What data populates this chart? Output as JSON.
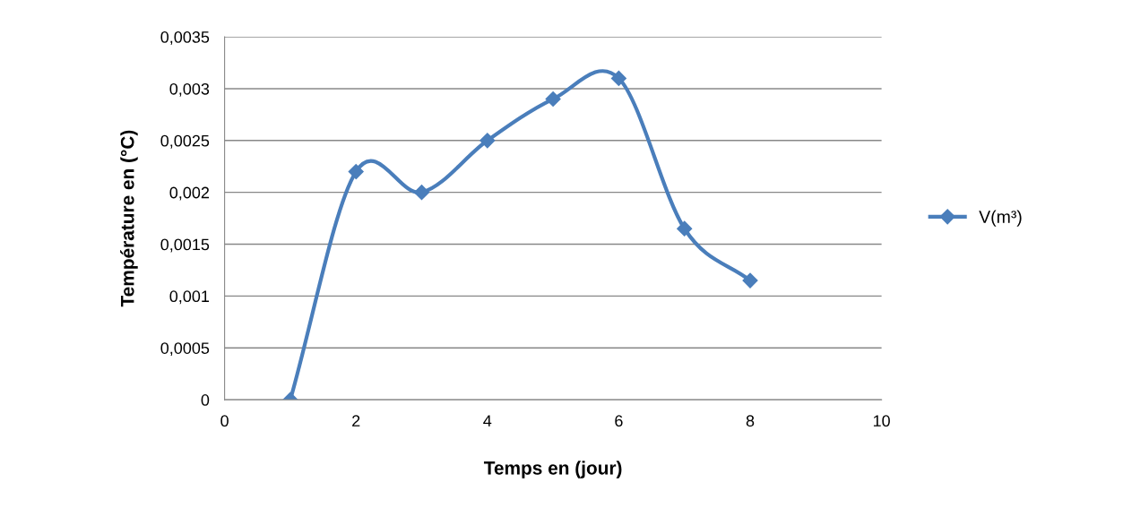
{
  "chart_data": {
    "type": "line",
    "xlabel": "Temps en (jour)",
    "ylabel": "Température en (°C)",
    "x": [
      1,
      2,
      3,
      4,
      5,
      6,
      7,
      8
    ],
    "series": [
      {
        "name": "V(m³)",
        "color": "#4a7ebb",
        "values": [
          0,
          0.0022,
          0.002,
          0.0025,
          0.0029,
          0.0031,
          0.00165,
          0.00115
        ]
      }
    ],
    "xlim": [
      0,
      10
    ],
    "xticks": [
      0,
      2,
      4,
      6,
      8,
      10
    ],
    "ylim": [
      0,
      0.0035
    ],
    "yticks": [
      0,
      {
        "value": 0.0005,
        "label": "0,0005"
      },
      {
        "value": 0.001,
        "label": "0,001"
      },
      {
        "value": 0.0015,
        "label": "0,0015"
      },
      {
        "value": 0.002,
        "label": "0,002"
      },
      {
        "value": 0.0025,
        "label": "0,0025"
      },
      {
        "value": 0.003,
        "label": "0,003"
      },
      {
        "value": 0.0035,
        "label": "0,0035"
      }
    ],
    "grid": "y",
    "legend": "right",
    "marker": "diamond",
    "line_style": "solid"
  }
}
